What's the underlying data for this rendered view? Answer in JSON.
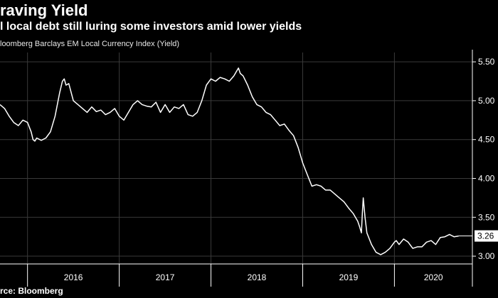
{
  "header": {
    "title": "raving Yield",
    "subtitle": "l local debt still luring some investors amid lower yields",
    "series_label": "loomberg Barclays EM Local Currency Index (Yield)"
  },
  "footer": {
    "source": "rce: Bloomberg"
  },
  "colors": {
    "background": "#000000",
    "line": "#ffffff",
    "grid": "#3a3a3a",
    "axis": "#ffffff",
    "last_value_box_bg": "#ffffff",
    "last_value_box_text": "#000000"
  },
  "chart_data": {
    "type": "line",
    "title": "raving Yield",
    "subtitle": "l local debt still luring some investors amid lower yields",
    "ylabel": "loomberg Barclays EM Local Currency Index (Yield)",
    "xlabel": "",
    "y_ticks": [
      "3.00",
      "3.50",
      "4.00",
      "4.50",
      "5.00",
      "5.50"
    ],
    "y_tick_values": [
      3.0,
      3.5,
      4.0,
      4.5,
      5.0,
      5.5
    ],
    "x_tick_labels": [
      "2016",
      "2017",
      "2018",
      "2019",
      "2020"
    ],
    "year_boundaries": [
      2016,
      2017,
      2018,
      2019,
      2020
    ],
    "xlim": [
      2015.7,
      2020.85
    ],
    "ylim": [
      2.9,
      5.62
    ],
    "grid": true,
    "last_value_label": "3.26",
    "series": [
      {
        "x": [
          2015.7,
          2015.75,
          2015.8,
          2015.85,
          2015.9,
          2015.95,
          2016.0,
          2016.04,
          2016.06,
          2016.08,
          2016.1,
          2016.15,
          2016.2,
          2016.25,
          2016.3,
          2016.35,
          2016.38,
          2016.4,
          2016.42,
          2016.45,
          2016.5,
          2016.55,
          2016.6,
          2016.65,
          2016.7,
          2016.75,
          2016.8,
          2016.85,
          2016.9,
          2016.95,
          2017.0,
          2017.05,
          2017.1,
          2017.15,
          2017.2,
          2017.25,
          2017.3,
          2017.35,
          2017.4,
          2017.45,
          2017.5,
          2017.55,
          2017.6,
          2017.65,
          2017.7,
          2017.75,
          2017.8,
          2017.85,
          2017.9,
          2017.95,
          2018.0,
          2018.05,
          2018.1,
          2018.15,
          2018.2,
          2018.25,
          2018.28,
          2018.3,
          2018.32,
          2018.35,
          2018.4,
          2018.45,
          2018.5,
          2018.55,
          2018.6,
          2018.65,
          2018.7,
          2018.75,
          2018.8,
          2018.85,
          2018.9,
          2018.95,
          2019.0,
          2019.05,
          2019.1,
          2019.15,
          2019.2,
          2019.25,
          2019.3,
          2019.35,
          2019.4,
          2019.45,
          2019.5,
          2019.55,
          2019.6,
          2019.62,
          2019.64,
          2019.65,
          2019.66,
          2019.68,
          2019.7,
          2019.75,
          2019.8,
          2019.85,
          2019.9,
          2019.95,
          2020.0,
          2020.02,
          2020.05,
          2020.1,
          2020.15,
          2020.2,
          2020.25,
          2020.3,
          2020.35,
          2020.4,
          2020.45,
          2020.5,
          2020.55,
          2020.6,
          2020.65,
          2020.7
        ],
        "values": [
          4.95,
          4.9,
          4.8,
          4.72,
          4.68,
          4.75,
          4.72,
          4.6,
          4.5,
          4.48,
          4.52,
          4.49,
          4.52,
          4.6,
          4.8,
          5.1,
          5.25,
          5.28,
          5.2,
          5.22,
          5.0,
          4.95,
          4.9,
          4.85,
          4.92,
          4.86,
          4.88,
          4.82,
          4.85,
          4.9,
          4.8,
          4.75,
          4.85,
          4.95,
          5.0,
          4.95,
          4.93,
          4.92,
          4.98,
          4.85,
          4.95,
          4.85,
          4.92,
          4.9,
          4.95,
          4.82,
          4.8,
          4.85,
          5.0,
          5.2,
          5.28,
          5.25,
          5.3,
          5.28,
          5.25,
          5.32,
          5.38,
          5.42,
          5.35,
          5.32,
          5.2,
          5.05,
          4.95,
          4.92,
          4.85,
          4.82,
          4.75,
          4.68,
          4.7,
          4.62,
          4.55,
          4.4,
          4.2,
          4.05,
          3.9,
          3.92,
          3.9,
          3.85,
          3.85,
          3.8,
          3.75,
          3.7,
          3.62,
          3.55,
          3.45,
          3.38,
          3.3,
          3.55,
          3.75,
          3.5,
          3.3,
          3.15,
          3.05,
          3.02,
          3.05,
          3.1,
          3.18,
          3.2,
          3.15,
          3.22,
          3.18,
          3.1,
          3.12,
          3.12,
          3.18,
          3.2,
          3.15,
          3.24,
          3.25,
          3.28,
          3.25,
          3.26
        ]
      }
    ]
  }
}
